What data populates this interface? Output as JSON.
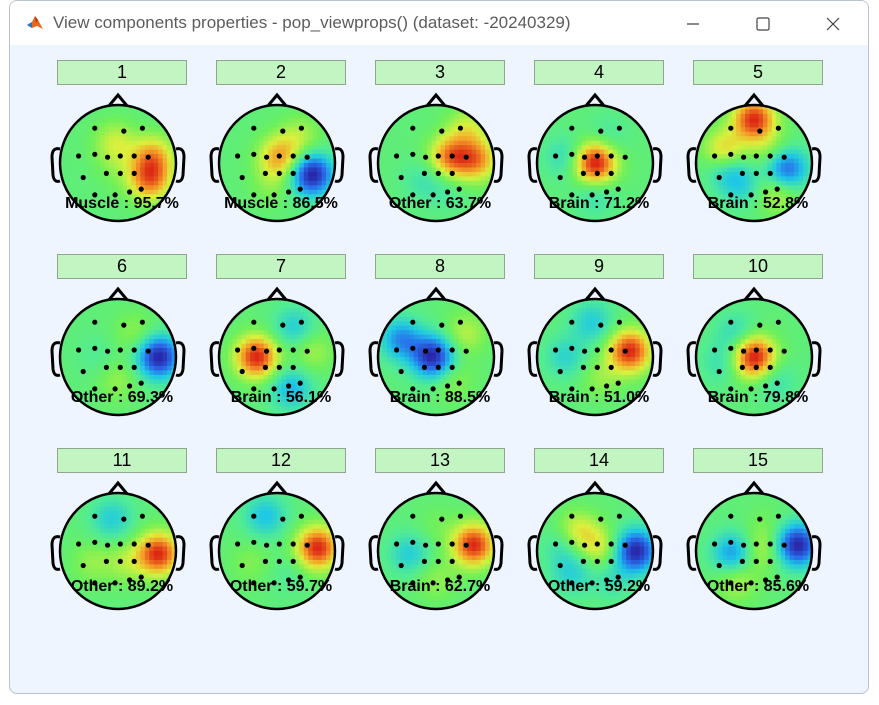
{
  "window": {
    "title": "View components properties - pop_viewprops() (dataset: -20240329)",
    "app_icon": "matlab-icon",
    "controls": {
      "minimize": "minimize-icon",
      "maximize": "maximize-icon",
      "close": "close-icon"
    }
  },
  "components": [
    {
      "number": "1",
      "label": "Muscle : 95.7%",
      "field": [
        [
          0.2,
          -0.2,
          0.0
        ],
        [
          0.55,
          0.3,
          0.95
        ],
        [
          0.6,
          -0.1,
          0.8
        ],
        [
          -0.05,
          -0.35,
          0.45
        ],
        [
          0.0,
          0.1,
          0.15
        ]
      ]
    },
    {
      "number": "2",
      "label": "Muscle : 86.5%",
      "field": [
        [
          0.6,
          0.2,
          -1.0
        ],
        [
          0.4,
          -0.45,
          0.25
        ],
        [
          -0.1,
          0.35,
          0.15
        ],
        [
          0.05,
          -0.1,
          0.6
        ]
      ]
    },
    {
      "number": "3",
      "label": "Other : 63.7%",
      "field": [
        [
          0.25,
          -0.1,
          1.0
        ],
        [
          0.7,
          -0.05,
          0.9
        ],
        [
          0.55,
          -0.6,
          0.45
        ],
        [
          -0.2,
          0.3,
          -0.25
        ],
        [
          0.2,
          0.5,
          -0.15
        ]
      ]
    },
    {
      "number": "4",
      "label": "Brain : 71.2%",
      "field": [
        [
          0.0,
          0.0,
          1.0
        ],
        [
          -0.5,
          -0.1,
          -0.25
        ],
        [
          0.2,
          -0.45,
          -0.15
        ],
        [
          0.0,
          0.55,
          -0.2
        ]
      ]
    },
    {
      "number": "5",
      "label": "Brain : 52.8%",
      "field": [
        [
          0.0,
          -0.75,
          1.1
        ],
        [
          -0.5,
          -0.2,
          0.65
        ],
        [
          0.55,
          0.1,
          -0.9
        ],
        [
          -0.45,
          0.1,
          -0.45
        ],
        [
          -0.2,
          0.4,
          -0.3
        ],
        [
          0.4,
          0.5,
          0.4
        ],
        [
          0.3,
          -0.2,
          0.3
        ]
      ]
    },
    {
      "number": "6",
      "label": "Other : 69.3%",
      "field": [
        [
          0.7,
          0.0,
          -1.0
        ],
        [
          0.3,
          -0.4,
          0.2
        ],
        [
          0.0,
          0.4,
          0.2
        ],
        [
          -0.35,
          0.0,
          -0.1
        ]
      ]
    },
    {
      "number": "7",
      "label": "Brain : 56.1%",
      "field": [
        [
          -0.35,
          0.0,
          1.0
        ],
        [
          0.3,
          -0.5,
          -0.35
        ],
        [
          0.25,
          0.55,
          -0.45
        ],
        [
          0.6,
          -0.1,
          0.25
        ]
      ]
    },
    {
      "number": "8",
      "label": "Brain : 88.5%",
      "field": [
        [
          -0.05,
          0.0,
          -1.0
        ],
        [
          -0.6,
          -0.3,
          -0.6
        ],
        [
          0.5,
          -0.4,
          0.3
        ],
        [
          0.3,
          0.4,
          0.2
        ]
      ]
    },
    {
      "number": "9",
      "label": "Brain : 51.0%",
      "field": [
        [
          0.6,
          -0.1,
          1.0
        ],
        [
          -0.05,
          -0.6,
          -0.35
        ],
        [
          -0.5,
          0.0,
          -0.3
        ],
        [
          0.1,
          0.35,
          0.2
        ]
      ]
    },
    {
      "number": "10",
      "label": "Brain : 79.8%",
      "field": [
        [
          0.0,
          0.0,
          1.0
        ],
        [
          -0.3,
          -0.4,
          -0.25
        ],
        [
          0.35,
          0.4,
          -0.2
        ],
        [
          -0.55,
          0.1,
          -0.2
        ]
      ]
    },
    {
      "number": "11",
      "label": "Other : 89.2%",
      "field": [
        [
          0.7,
          0.05,
          1.0
        ],
        [
          -0.1,
          -0.55,
          -0.35
        ],
        [
          0.15,
          0.2,
          0.25
        ],
        [
          -0.45,
          0.2,
          0.2
        ]
      ]
    },
    {
      "number": "12",
      "label": "Other : 59.7%",
      "field": [
        [
          0.7,
          -0.05,
          1.0
        ],
        [
          -0.2,
          -0.6,
          -0.4
        ],
        [
          0.2,
          0.4,
          -0.1
        ],
        [
          -0.45,
          0.2,
          0.15
        ]
      ]
    },
    {
      "number": "13",
      "label": "Brain : 62.7%",
      "field": [
        [
          0.65,
          -0.1,
          1.0
        ],
        [
          -0.45,
          0.05,
          -0.35
        ],
        [
          0.0,
          0.5,
          0.2
        ],
        [
          0.0,
          -0.4,
          0.1
        ]
      ]
    },
    {
      "number": "14",
      "label": "Other : 59.2%",
      "field": [
        [
          0.7,
          0.0,
          -1.0
        ],
        [
          -0.3,
          -0.3,
          0.5
        ],
        [
          0.1,
          -0.05,
          0.35
        ],
        [
          -0.4,
          0.4,
          -0.3
        ],
        [
          0.3,
          0.5,
          -0.2
        ],
        [
          -0.5,
          -0.1,
          -0.3
        ]
      ]
    },
    {
      "number": "15",
      "label": "Other : 85.6%",
      "field": [
        [
          0.75,
          -0.1,
          -1.0
        ],
        [
          -0.35,
          0.05,
          -0.6
        ],
        [
          0.1,
          0.0,
          0.3
        ],
        [
          -0.3,
          0.5,
          0.3
        ],
        [
          0.2,
          -0.4,
          0.1
        ]
      ]
    }
  ]
}
